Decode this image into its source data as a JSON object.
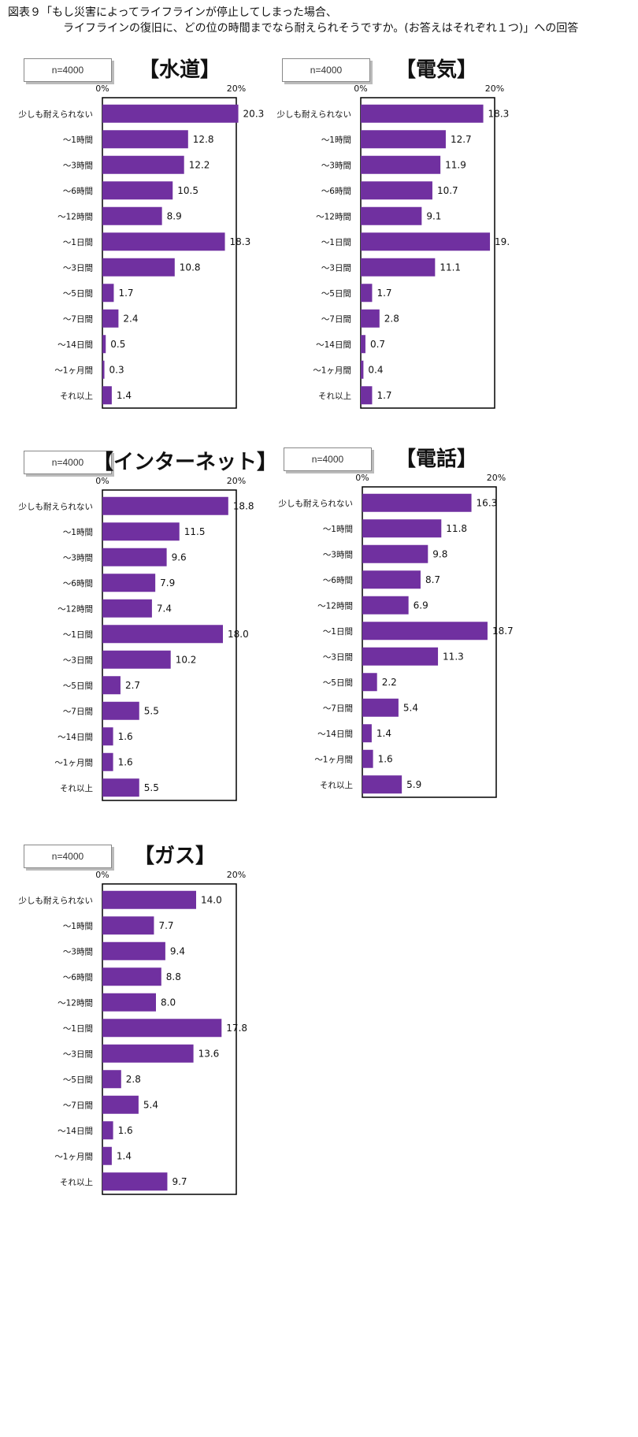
{
  "figure_title": "図表９「もし災害によってライフラインが停止してしまった場合、\n　　　　　ライフラインの復旧に、どの位の時間までなら耐えられそうですか。(お答えはそれぞれ１つ)」への回答",
  "bar_color": "#7030A0",
  "chart_data": [
    {
      "type": "bar",
      "title": "【水道】",
      "n_label": "n=4000",
      "categories": [
        "少しも耐えられない",
        "～1時間",
        "～3時間",
        "～6時間",
        "～12時間",
        "～1日間",
        "～3日間",
        "～5日間",
        "～7日間",
        "～14日間",
        "～1ヶ月間",
        "それ以上"
      ],
      "values": [
        20.3,
        12.8,
        12.2,
        10.5,
        8.9,
        18.3,
        10.8,
        1.7,
        2.4,
        0.5,
        0.3,
        1.4
      ],
      "value_labels": [
        "20.3",
        "12.8",
        "12.2",
        "10.5",
        "8.9",
        "18.3",
        "10.8",
        "1.7",
        "2.4",
        "0.5",
        "0.3",
        "1.4"
      ],
      "x_ticks": [
        "0%",
        "20%"
      ],
      "xlim": [
        0,
        20
      ]
    },
    {
      "type": "bar",
      "title": "【電気】",
      "n_label": "n=4000",
      "categories": [
        "少しも耐えられない",
        "～1時間",
        "～3時間",
        "～6時間",
        "～12時間",
        "～1日間",
        "～3日間",
        "～5日間",
        "～7日間",
        "～14日間",
        "～1ヶ月間",
        "それ以上"
      ],
      "values": [
        18.3,
        12.7,
        11.9,
        10.7,
        9.1,
        19.3,
        11.1,
        1.7,
        2.8,
        0.7,
        0.4,
        1.7
      ],
      "value_labels": [
        "18.3",
        "12.7",
        "11.9",
        "10.7",
        "9.1",
        "19.",
        "11.1",
        "1.7",
        "2.8",
        "0.7",
        "0.4",
        "1.7"
      ],
      "x_ticks": [
        "0%",
        "20%"
      ],
      "xlim": [
        0,
        20
      ]
    },
    {
      "type": "bar",
      "title": "【インターネット】",
      "n_label": "n=4000",
      "categories": [
        "少しも耐えられない",
        "～1時間",
        "～3時間",
        "～6時間",
        "～12時間",
        "～1日間",
        "～3日間",
        "～5日間",
        "～7日間",
        "～14日間",
        "～1ヶ月間",
        "それ以上"
      ],
      "values": [
        18.8,
        11.5,
        9.6,
        7.9,
        7.4,
        18.0,
        10.2,
        2.7,
        5.5,
        1.6,
        1.6,
        5.5
      ],
      "value_labels": [
        "18.8",
        "11.5",
        "9.6",
        "7.9",
        "7.4",
        "18.0",
        "10.2",
        "2.7",
        "5.5",
        "1.6",
        "1.6",
        "5.5"
      ],
      "x_ticks": [
        "0%",
        "20%"
      ],
      "xlim": [
        0,
        20
      ]
    },
    {
      "type": "bar",
      "title": "【電話】",
      "n_label": "n=4000",
      "categories": [
        "少しも耐えられない",
        "～1時間",
        "～3時間",
        "～6時間",
        "～12時間",
        "～1日間",
        "～3日間",
        "～5日間",
        "～7日間",
        "～14日間",
        "～1ヶ月間",
        "それ以上"
      ],
      "values": [
        16.3,
        11.8,
        9.8,
        8.7,
        6.9,
        18.7,
        11.3,
        2.2,
        5.4,
        1.4,
        1.6,
        5.9
      ],
      "value_labels": [
        "16.3",
        "11.8",
        "9.8",
        "8.7",
        "6.9",
        "18.7",
        "11.3",
        "2.2",
        "5.4",
        "1.4",
        "1.6",
        "5.9"
      ],
      "x_ticks": [
        "0%",
        "20%"
      ],
      "xlim": [
        0,
        20
      ]
    },
    {
      "type": "bar",
      "title": "【ガス】",
      "n_label": "n=4000",
      "categories": [
        "少しも耐えられない",
        "～1時間",
        "～3時間",
        "～6時間",
        "～12時間",
        "～1日間",
        "～3日間",
        "～5日間",
        "～7日間",
        "～14日間",
        "～1ヶ月間",
        "それ以上"
      ],
      "values": [
        14.0,
        7.7,
        9.4,
        8.8,
        8.0,
        17.8,
        13.6,
        2.8,
        5.4,
        1.6,
        1.4,
        9.7
      ],
      "value_labels": [
        "14.0",
        "7.7",
        "9.4",
        "8.8",
        "8.0",
        "17.8",
        "13.6",
        "2.8",
        "5.4",
        "1.6",
        "1.4",
        "9.7"
      ],
      "x_ticks": [
        "0%",
        "20%"
      ],
      "xlim": [
        0,
        20
      ]
    }
  ]
}
